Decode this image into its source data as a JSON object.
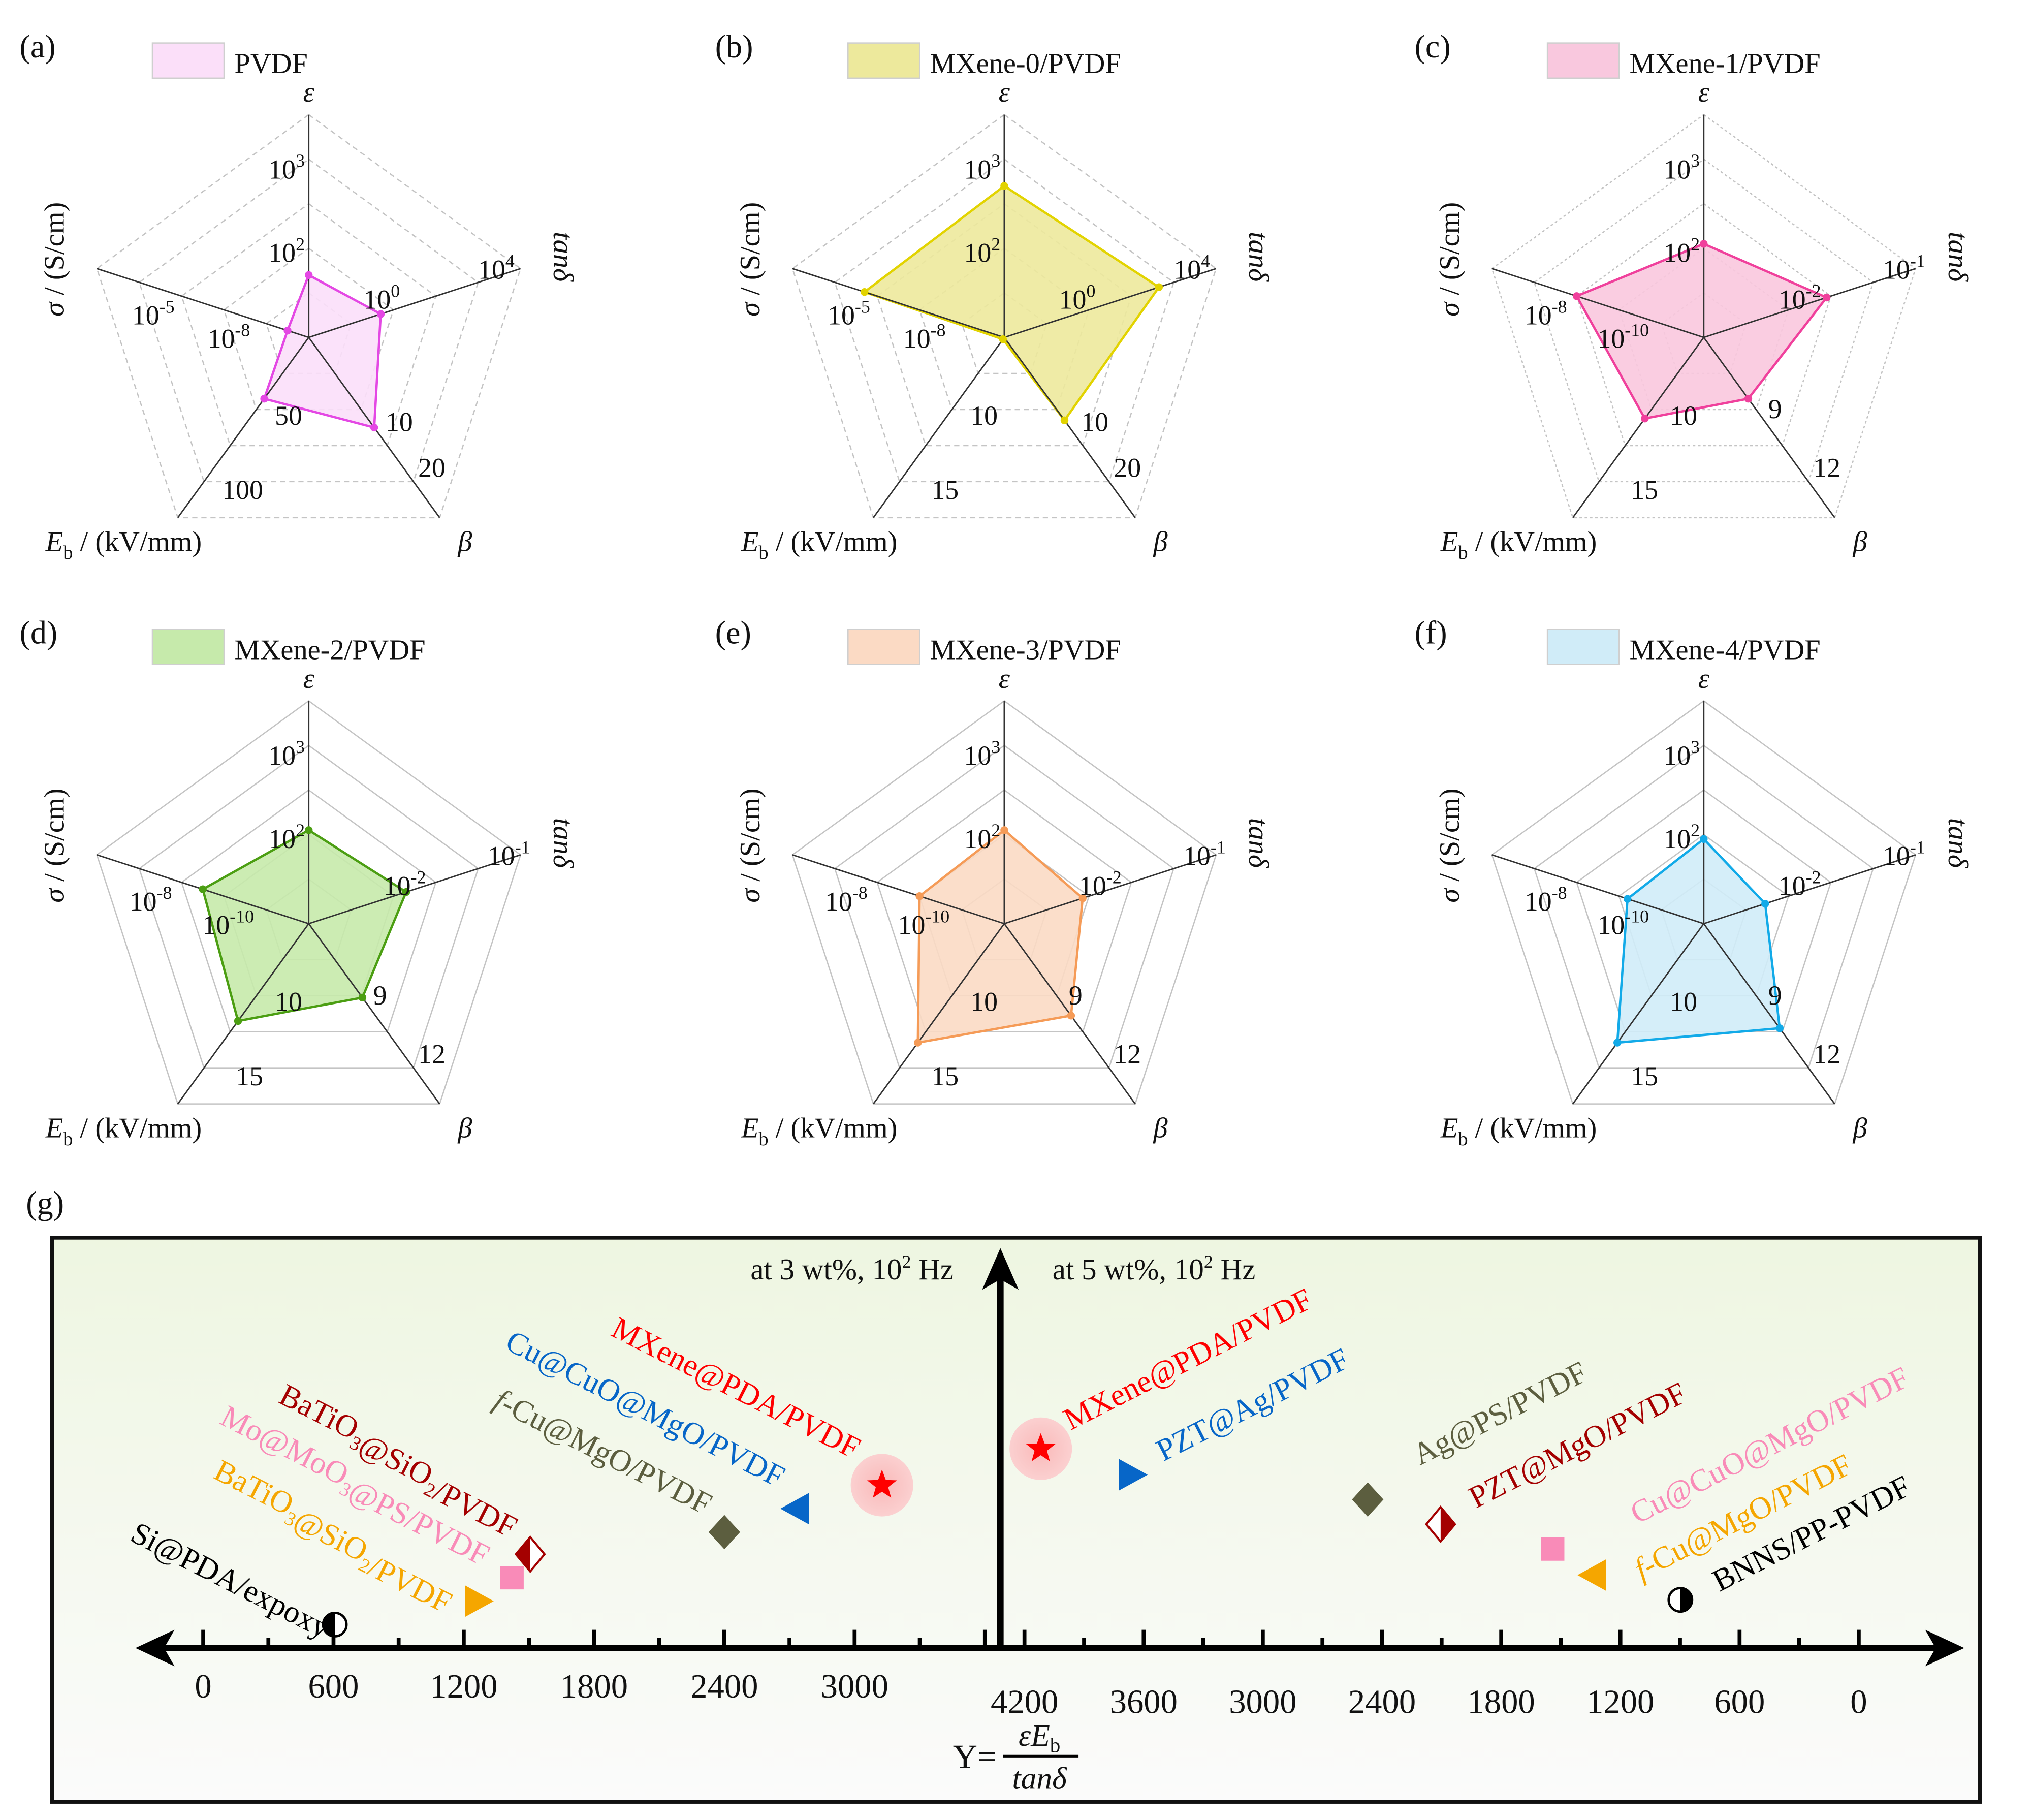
{
  "chart_data": [
    {
      "type": "radar",
      "panel": "(a)",
      "legend": "PVDF",
      "stroke": "#e448e4",
      "fill": "#fbdff9",
      "grid": "dashed",
      "axes": [
        "ε",
        "tanδ",
        "β",
        "Eb",
        "σ"
      ],
      "values": [
        1.4,
        1.7,
        2.5,
        1.7,
        0.5
      ],
      "ticks": {
        "eps": [
          {
            "b": "10",
            "e": "2"
          },
          {
            "b": "10",
            "e": "3"
          }
        ],
        "tan": [
          {
            "b": "10",
            "e": "0"
          },
          {
            "b": "10",
            "e": "4"
          }
        ],
        "sig": [
          {
            "b": "10",
            "e": "-5"
          },
          {
            "b": "10",
            "e": "-8"
          }
        ],
        "eb": [
          {
            "b": "50",
            "e": ""
          },
          {
            "b": "100",
            "e": ""
          }
        ],
        "beta": [
          {
            "b": "10",
            "e": ""
          },
          {
            "b": "20",
            "e": ""
          }
        ]
      }
    },
    {
      "type": "radar",
      "panel": "(b)",
      "legend": "MXene-0/PVDF",
      "stroke": "#e2d300",
      "fill": "#ede99c",
      "grid": "dashed",
      "axes": [
        "ε",
        "tanδ",
        "β",
        "Eb",
        "σ"
      ],
      "values": [
        3.4,
        3.65,
        2.3,
        0.05,
        3.3
      ],
      "ticks": {
        "eps": [
          {
            "b": "10",
            "e": "2"
          },
          {
            "b": "10",
            "e": "3"
          }
        ],
        "tan": [
          {
            "b": "10",
            "e": "0"
          },
          {
            "b": "10",
            "e": "4"
          }
        ],
        "sig": [
          {
            "b": "10",
            "e": "-5"
          },
          {
            "b": "10",
            "e": "-8"
          }
        ],
        "eb": [
          {
            "b": "10",
            "e": ""
          },
          {
            "b": "15",
            "e": ""
          }
        ],
        "beta": [
          {
            "b": "10",
            "e": ""
          },
          {
            "b": "20",
            "e": ""
          }
        ]
      }
    },
    {
      "type": "radar",
      "panel": "(c)",
      "legend": "MXene-1/PVDF",
      "stroke": "#f0409c",
      "fill": "#f9c8de",
      "grid": "dotted",
      "axes": [
        "ε",
        "tanδ",
        "β",
        "Eb",
        "σ"
      ],
      "values": [
        2.1,
        2.9,
        1.7,
        2.25,
        3.0
      ],
      "ticks": {
        "eps": [
          {
            "b": "10",
            "e": "2"
          },
          {
            "b": "10",
            "e": "3"
          }
        ],
        "tan": [
          {
            "b": "10",
            "e": "-2"
          },
          {
            "b": "10",
            "e": "-1"
          }
        ],
        "sig": [
          {
            "b": "10",
            "e": "-8"
          },
          {
            "b": "10",
            "e": "-10"
          }
        ],
        "eb": [
          {
            "b": "10",
            "e": ""
          },
          {
            "b": "15",
            "e": ""
          }
        ],
        "beta": [
          {
            "b": "9",
            "e": ""
          },
          {
            "b": "12",
            "e": ""
          }
        ]
      }
    },
    {
      "type": "radar",
      "panel": "(d)",
      "legend": "MXene-2/PVDF",
      "stroke": "#4b9e12",
      "fill": "#c6eaab",
      "grid": "solid",
      "axes": [
        "ε",
        "tanδ",
        "β",
        "Eb",
        "σ"
      ],
      "values": [
        2.1,
        2.3,
        2.05,
        2.7,
        2.5
      ],
      "ticks": {
        "eps": [
          {
            "b": "10",
            "e": "2"
          },
          {
            "b": "10",
            "e": "3"
          }
        ],
        "tan": [
          {
            "b": "10",
            "e": "-2"
          },
          {
            "b": "10",
            "e": "-1"
          }
        ],
        "sig": [
          {
            "b": "10",
            "e": "-8"
          },
          {
            "b": "10",
            "e": "-10"
          }
        ],
        "eb": [
          {
            "b": "10",
            "e": ""
          },
          {
            "b": "15",
            "e": ""
          }
        ],
        "beta": [
          {
            "b": "9",
            "e": ""
          },
          {
            "b": "12",
            "e": ""
          }
        ]
      }
    },
    {
      "type": "radar",
      "panel": "(e)",
      "legend": "MXene-3/PVDF",
      "stroke": "#f59b57",
      "fill": "#fbdac4",
      "grid": "solid",
      "axes": [
        "ε",
        "tanδ",
        "β",
        "Eb",
        "σ"
      ],
      "values": [
        2.1,
        1.85,
        2.55,
        3.3,
        2.0
      ],
      "ticks": {
        "eps": [
          {
            "b": "10",
            "e": "2"
          },
          {
            "b": "10",
            "e": "3"
          }
        ],
        "tan": [
          {
            "b": "10",
            "e": "-2"
          },
          {
            "b": "10",
            "e": "-1"
          }
        ],
        "sig": [
          {
            "b": "10",
            "e": "-8"
          },
          {
            "b": "10",
            "e": "-10"
          }
        ],
        "eb": [
          {
            "b": "10",
            "e": ""
          },
          {
            "b": "15",
            "e": ""
          }
        ],
        "beta": [
          {
            "b": "9",
            "e": ""
          },
          {
            "b": "12",
            "e": ""
          }
        ]
      }
    },
    {
      "type": "radar",
      "panel": "(f)",
      "legend": "MXene-4/PVDF",
      "stroke": "#12aae8",
      "fill": "#d0ecf8",
      "grid": "solid",
      "axes": [
        "ε",
        "tanδ",
        "β",
        "Eb",
        "σ"
      ],
      "values": [
        1.9,
        1.45,
        2.9,
        3.3,
        1.8
      ],
      "ticks": {
        "eps": [
          {
            "b": "10",
            "e": "2"
          },
          {
            "b": "10",
            "e": "3"
          }
        ],
        "tan": [
          {
            "b": "10",
            "e": "-2"
          },
          {
            "b": "10",
            "e": "-1"
          }
        ],
        "sig": [
          {
            "b": "10",
            "e": "-8"
          },
          {
            "b": "10",
            "e": "-10"
          }
        ],
        "eb": [
          {
            "b": "10",
            "e": ""
          },
          {
            "b": "15",
            "e": ""
          }
        ],
        "beta": [
          {
            "b": "9",
            "e": ""
          },
          {
            "b": "12",
            "e": ""
          }
        ]
      }
    },
    {
      "type": "scatter",
      "panel": "(g)",
      "left_title": "at 3 wt%, 10",
      "left_title_exp": "2",
      "left_title_tail": " Hz",
      "right_title": "at 5 wt%, 10",
      "right_title_exp": "2",
      "right_title_tail": " Hz",
      "left_ticks": [
        "0",
        "600",
        "1200",
        "1800",
        "2400",
        "3000"
      ],
      "right_ticks": [
        "4200",
        "3600",
        "3000",
        "2400",
        "1800",
        "1200",
        "600",
        "0"
      ],
      "formula": {
        "lhs": "Y=",
        "num_sym": "ε",
        "num_E": "E",
        "num_sub": "b",
        "den": "tanδ"
      },
      "left_points": [
        {
          "label": "MXene@PDA/PVDF",
          "value": 3126,
          "marker": "star",
          "color": "#ff0000"
        },
        {
          "label": "Cu@CuO@MgO/PVDF",
          "value": 2724,
          "marker": "tri-left",
          "color": "#0766c8"
        },
        {
          "label": "f-Cu@MgO/PVDF",
          "value": 2400,
          "marker": "diamond",
          "color": "#5c5e3f"
        },
        {
          "label": "BaTiO3@SiO2/PVDF",
          "value": 1506,
          "marker": "half-diamond",
          "color": "#a40000"
        },
        {
          "label": "Mo@MoO3@PS/PVDF",
          "value": 1422,
          "marker": "square",
          "color": "#f98bb8"
        },
        {
          "label": "BaTiO3@SiO2/PVDF",
          "value": 1272,
          "marker": "tri-right",
          "color": "#f5a600"
        },
        {
          "label": "Si@PDA/expoxy",
          "value": 606,
          "marker": "half-circle",
          "color": "#000000"
        }
      ],
      "right_points": [
        {
          "label": "MXene@PDA/PVDF",
          "value": 4118,
          "marker": "star",
          "color": "#ff0000"
        },
        {
          "label": "PZT@Ag/PVDF",
          "value": 3652,
          "marker": "tri-right",
          "color": "#0766c8"
        },
        {
          "label": "Ag@PS/PVDF",
          "value": 2472,
          "marker": "diamond",
          "color": "#5c5e3f"
        },
        {
          "label": "PZT@MgO/PVDF",
          "value": 2105,
          "marker": "half-diamond",
          "color": "#a40000"
        },
        {
          "label": "Cu@CuO@MgO/PVDF",
          "value": 1541,
          "marker": "square",
          "color": "#f98bb8"
        },
        {
          "label": "f-Cu@MgO/PVDF",
          "value": 1344,
          "marker": "tri-left",
          "color": "#f5a600"
        },
        {
          "label": "BNNS/PP-PVDF",
          "value": 898,
          "marker": "half-circle",
          "color": "#000000"
        }
      ]
    }
  ],
  "axis_labels": {
    "eps": "ε",
    "tan": "tanδ",
    "beta": "β",
    "eb_sym": "E",
    "eb_sub": "b",
    "eb_unit": " / (kV/mm)",
    "sig_sym": "σ",
    "sig_unit": " / (S/cm)"
  }
}
